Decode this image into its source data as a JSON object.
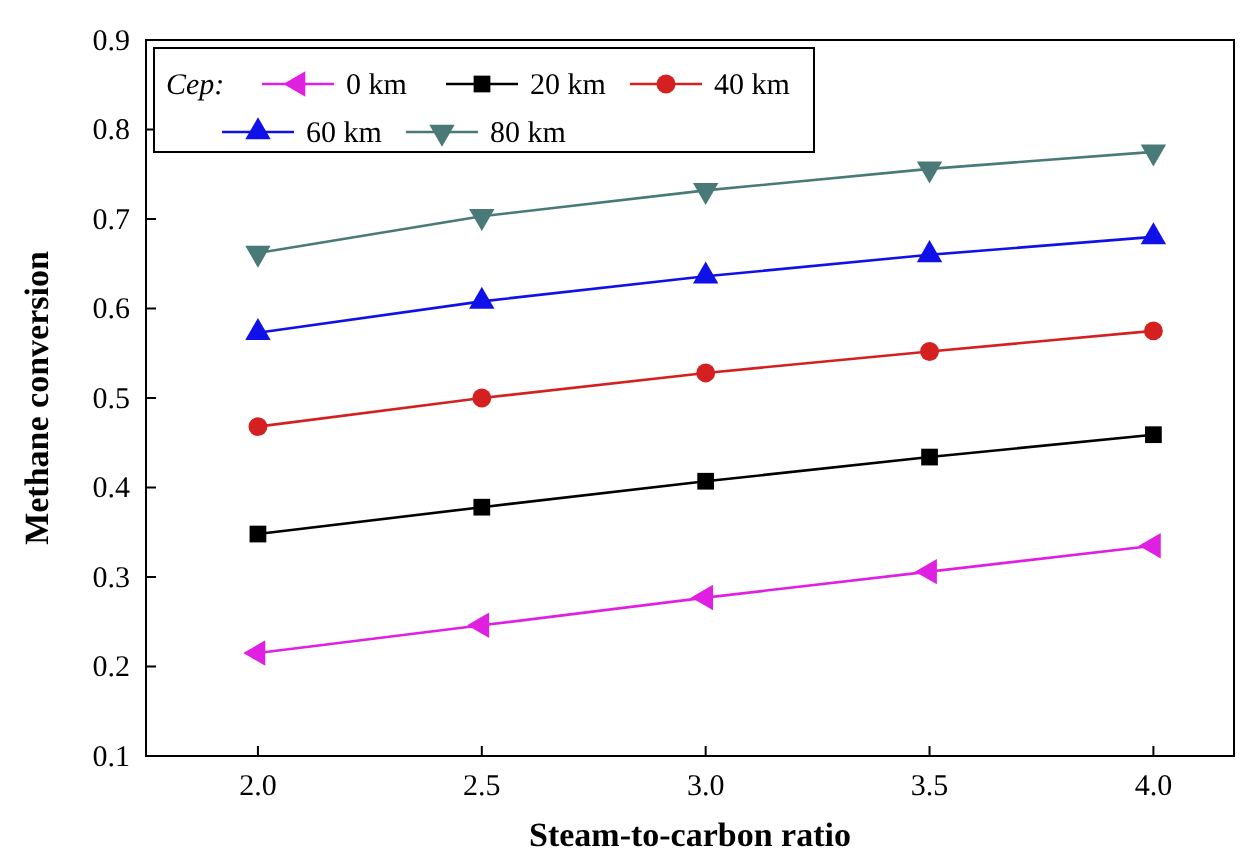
{
  "chart_data": {
    "type": "line",
    "xlabel": "Steam-to-carbon ratio",
    "ylabel": "Methane conversion",
    "legend_title": "Cep:",
    "legend": "top left",
    "x": [
      2.0,
      2.5,
      3.0,
      3.5,
      4.0
    ],
    "xlim": [
      1.75,
      4.18
    ],
    "xticks": [
      {
        "value": 2,
        "label": "2.0"
      },
      {
        "value": 2.5,
        "label": "2.5"
      },
      {
        "value": 3,
        "label": "3.0"
      },
      {
        "value": 3.5,
        "label": "3.5"
      },
      {
        "value": 4,
        "label": "4.0"
      }
    ],
    "ylim": [
      0.1,
      0.9
    ],
    "yticks": [
      0.1,
      0.2,
      0.3,
      0.4,
      0.5,
      0.6,
      0.7,
      0.8,
      0.9
    ],
    "grid": false,
    "line_style": "solid",
    "series": [
      {
        "name": "0 km",
        "color": "#e020e0",
        "marker": "triangle-left",
        "values": [
          0.215,
          0.246,
          0.277,
          0.306,
          0.335
        ]
      },
      {
        "name": "20 km",
        "color": "#000000",
        "marker": "square",
        "values": [
          0.348,
          0.378,
          0.407,
          0.434,
          0.459
        ]
      },
      {
        "name": "40 km",
        "color": "#d42020",
        "marker": "circle",
        "values": [
          0.468,
          0.5,
          0.528,
          0.552,
          0.575
        ]
      },
      {
        "name": "60 km",
        "color": "#1010e8",
        "marker": "triangle",
        "values": [
          0.573,
          0.608,
          0.636,
          0.66,
          0.68
        ]
      },
      {
        "name": "80 km",
        "color": "#4a7a78",
        "marker": "triangle-down",
        "values": [
          0.662,
          0.703,
          0.732,
          0.756,
          0.775
        ]
      }
    ]
  }
}
